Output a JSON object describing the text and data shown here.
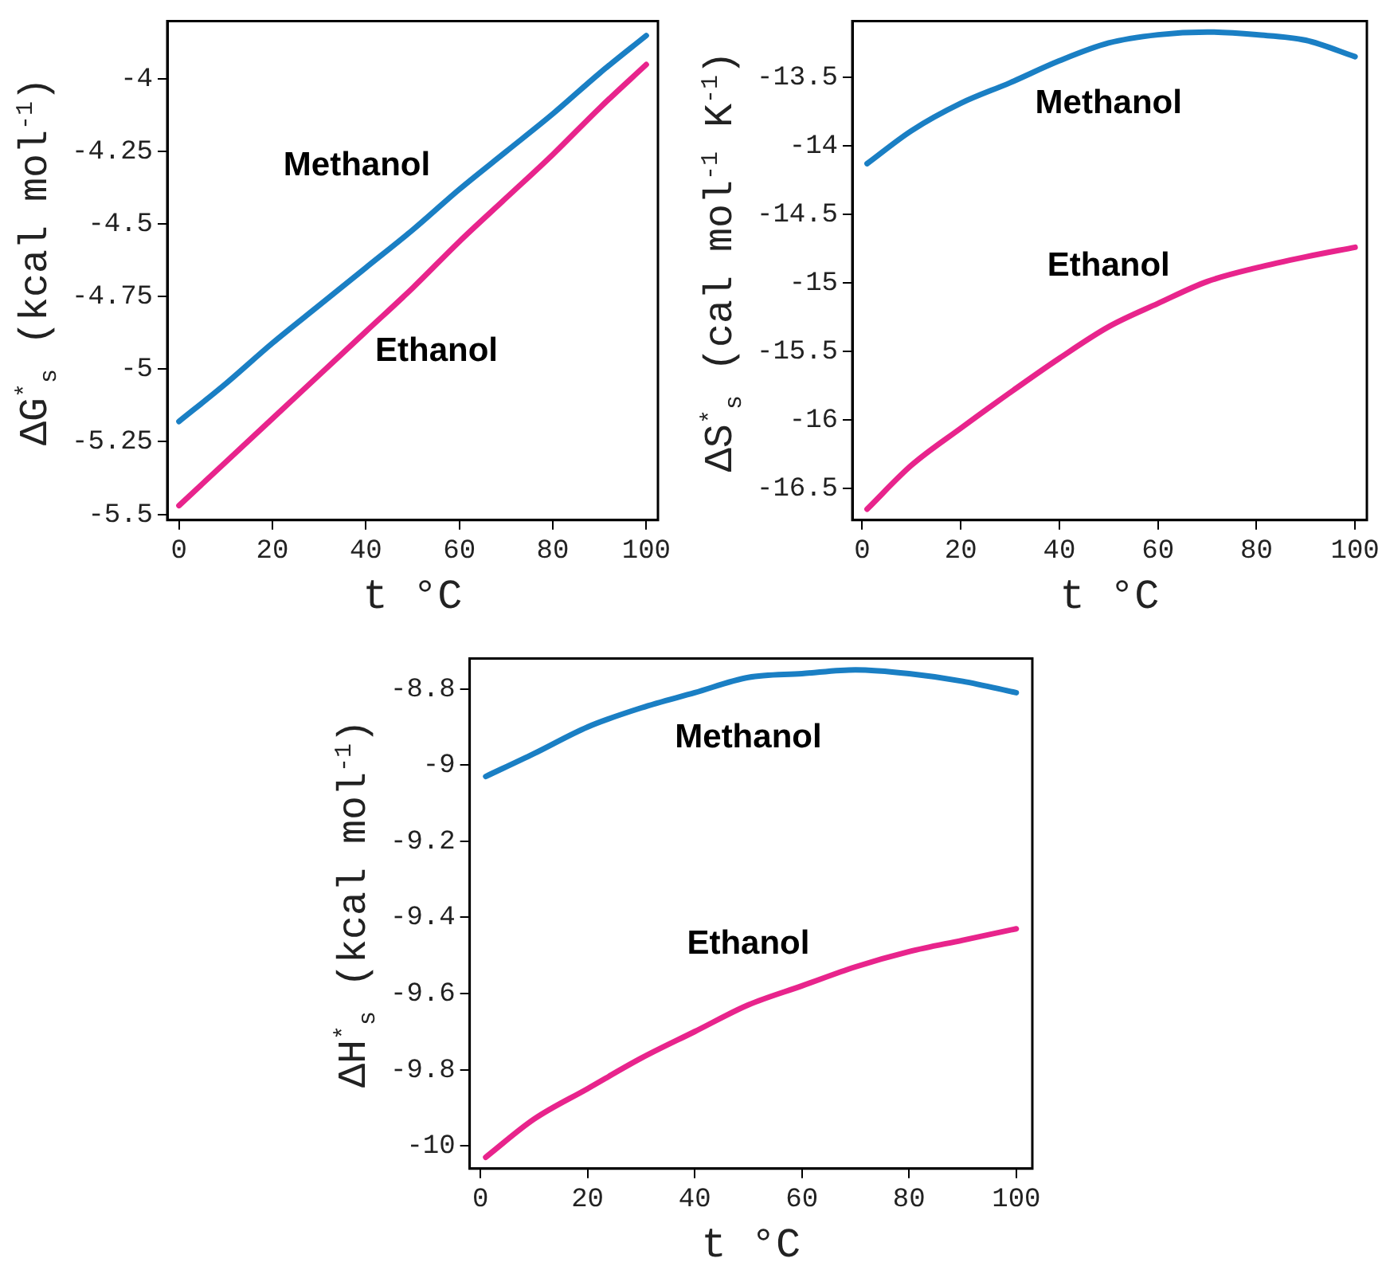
{
  "chart_data": [
    {
      "type": "line",
      "xlabel": "t °C",
      "ylabel": "ΔG$^{*}$$_{s}$ (kcal mol$^{-1}$)",
      "x": [
        0,
        10,
        20,
        30,
        40,
        50,
        60,
        70,
        80,
        90,
        100
      ],
      "xlim": [
        -2.5,
        102.5
      ],
      "xticks": [
        0,
        20,
        40,
        60,
        80,
        100
      ],
      "ylim": [
        -5.52,
        -3.8
      ],
      "yticks": [
        -5.5,
        -5.25,
        -5,
        -4.75,
        -4.5,
        -4.25,
        -4
      ],
      "grid": false,
      "legend": false,
      "marker": "none",
      "line_style": "solid",
      "series": [
        {
          "name": "Methanol",
          "color": "#1a7fc4",
          "values": [
            -5.18,
            -5.05,
            -4.91,
            -4.78,
            -4.65,
            -4.52,
            -4.38,
            -4.25,
            -4.12,
            -3.98,
            -3.85
          ]
        },
        {
          "name": "Ethanol",
          "color": "#e8248c",
          "values": [
            -5.47,
            -5.32,
            -5.17,
            -5.02,
            -4.87,
            -4.72,
            -4.56,
            -4.41,
            -4.26,
            -4.1,
            -3.95
          ]
        }
      ]
    },
    {
      "type": "line",
      "xlabel": "t °C",
      "ylabel": "ΔS$^{*}$$_{s}$ (cal mol$^{-1}$ K$^{-1}$)",
      "x": [
        1,
        10,
        20,
        30,
        40,
        50,
        60,
        70,
        80,
        90,
        100
      ],
      "xlim": [
        -2,
        102.4
      ],
      "xticks": [
        0,
        20,
        40,
        60,
        80,
        100
      ],
      "ylim": [
        -16.73,
        -13.09
      ],
      "yticks": [
        -16.5,
        -16,
        -15.5,
        -15,
        -14.5,
        -14,
        -13.5
      ],
      "grid": false,
      "legend": false,
      "marker": "none",
      "line_style": "solid",
      "series": [
        {
          "name": "Methanol",
          "color": "#1a7fc4",
          "values": [
            -14.13,
            -13.89,
            -13.69,
            -13.54,
            -13.38,
            -13.25,
            -13.19,
            -13.17,
            -13.19,
            -13.23,
            -13.35
          ]
        },
        {
          "name": "Ethanol",
          "color": "#e8248c",
          "values": [
            -16.65,
            -16.33,
            -16.06,
            -15.8,
            -15.55,
            -15.32,
            -15.15,
            -14.99,
            -14.89,
            -14.81,
            -14.74
          ]
        }
      ]
    },
    {
      "type": "line",
      "xlabel": "t °C",
      "ylabel": "ΔH$^{*}$$_{s}$ (kcal mol$^{-1}$)",
      "x": [
        1,
        10,
        20,
        30,
        40,
        50,
        60,
        70,
        80,
        90,
        100
      ],
      "xlim": [
        -2,
        103
      ],
      "xticks": [
        0,
        20,
        40,
        60,
        80,
        100
      ],
      "ylim": [
        -10.06,
        -8.72
      ],
      "yticks": [
        -10,
        -9.8,
        -9.6,
        -9.4,
        -9.2,
        -9,
        -8.8
      ],
      "grid": false,
      "legend": false,
      "marker": "none",
      "line_style": "solid",
      "series": [
        {
          "name": "Methanol",
          "color": "#1a7fc4",
          "values": [
            -9.03,
            -8.97,
            -8.9,
            -8.85,
            -8.81,
            -8.77,
            -8.76,
            -8.75,
            -8.76,
            -8.78,
            -8.81
          ]
        },
        {
          "name": "Ethanol",
          "color": "#e8248c",
          "values": [
            -10.03,
            -9.93,
            -9.85,
            -9.77,
            -9.7,
            -9.63,
            -9.58,
            -9.53,
            -9.49,
            -9.46,
            -9.43
          ]
        }
      ]
    }
  ]
}
